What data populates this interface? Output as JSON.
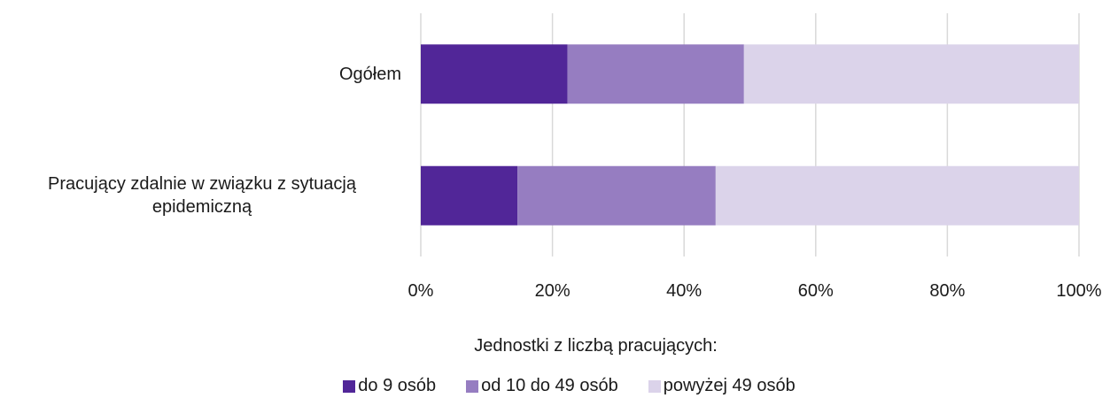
{
  "chart_data": {
    "type": "stacked_barh",
    "categories": [
      "Ogółem",
      "Pracujący zdalnie w związku z sytuacją epidemiczną"
    ],
    "series": [
      {
        "name": "do 9 osób",
        "color": "#512698",
        "values": [
          22.3,
          14.7
        ]
      },
      {
        "name": "od 10 do 49 osób",
        "color": "#967dc1",
        "values": [
          26.8,
          30.1
        ]
      },
      {
        "name": "powyżej 49 osób",
        "color": "#dbd3ea",
        "values": [
          50.9,
          55.2
        ]
      }
    ],
    "xlim": [
      0,
      100
    ],
    "xticks": [
      {
        "value": 0,
        "label": "0%"
      },
      {
        "value": 20,
        "label": "20%"
      },
      {
        "value": 40,
        "label": "40%"
      },
      {
        "value": 60,
        "label": "60%"
      },
      {
        "value": 80,
        "label": "80%"
      },
      {
        "value": 100,
        "label": "100%"
      }
    ],
    "grid": true,
    "legend_title": "Jednostki z liczbą pracujących:"
  }
}
